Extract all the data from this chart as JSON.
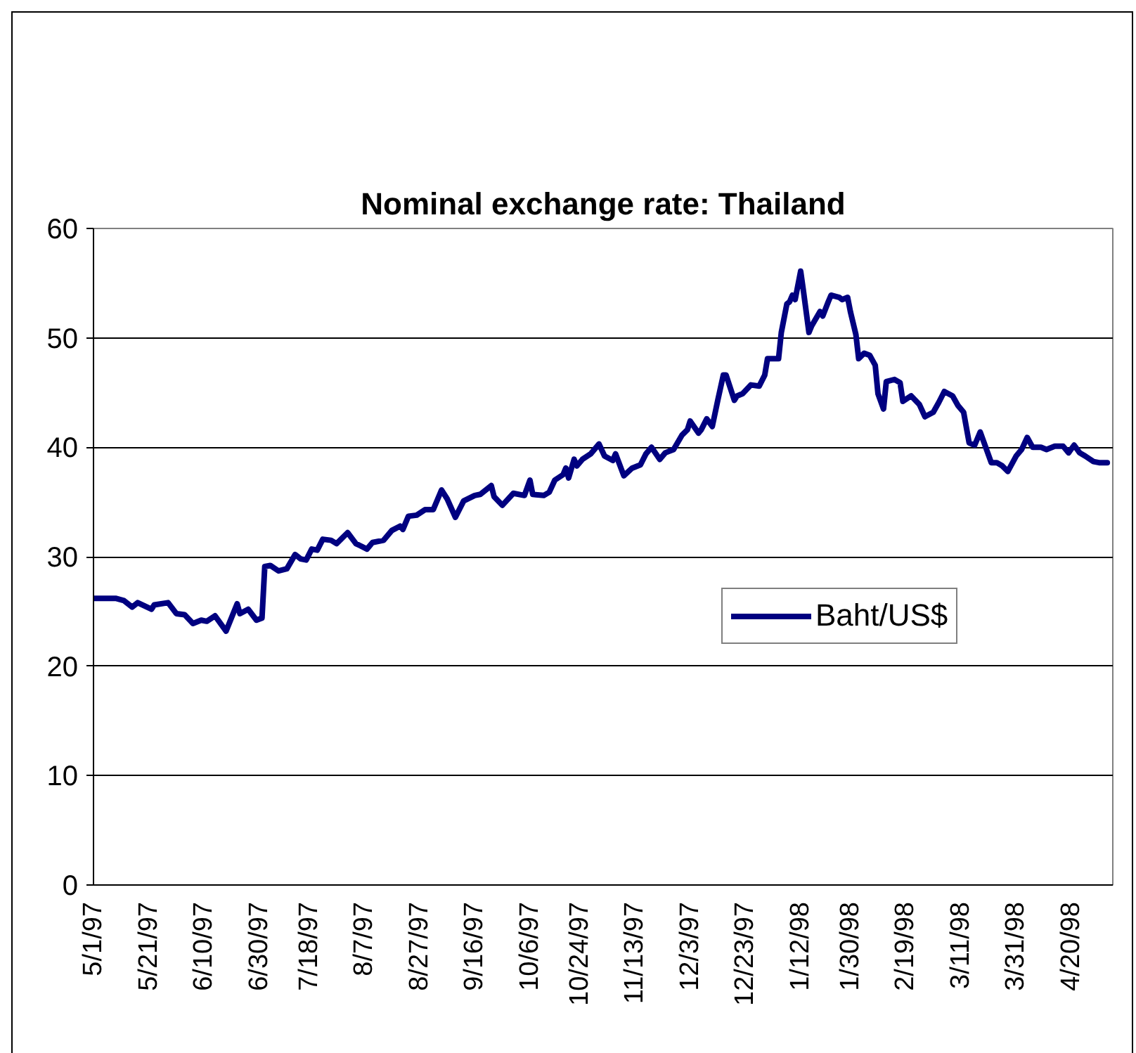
{
  "chart_data": {
    "type": "line",
    "title": "Nominal exchange rate: Thailand",
    "x": [
      "1997-05-01",
      "1997-05-09",
      "1997-05-12",
      "1997-05-15",
      "1997-05-17",
      "1997-05-22",
      "1997-05-23",
      "1997-05-28",
      "1997-05-31",
      "1997-06-03",
      "1997-06-06",
      "1997-06-09",
      "1997-06-11",
      "1997-06-14",
      "1997-06-18",
      "1997-06-22",
      "1997-06-23",
      "1997-06-26",
      "1997-06-29",
      "1997-07-01",
      "1997-07-02",
      "1997-07-04",
      "1997-07-07",
      "1997-07-10",
      "1997-07-13",
      "1997-07-15",
      "1997-07-17",
      "1997-07-19",
      "1997-07-21",
      "1997-07-23",
      "1997-07-26",
      "1997-07-28",
      "1997-08-01",
      "1997-08-04",
      "1997-08-08",
      "1997-08-10",
      "1997-08-14",
      "1997-08-17",
      "1997-08-20",
      "1997-08-21",
      "1997-08-23",
      "1997-08-26",
      "1997-08-29",
      "1997-09-01",
      "1997-09-04",
      "1997-09-06",
      "1997-09-09",
      "1997-09-12",
      "1997-09-16",
      "1997-09-18",
      "1997-09-22",
      "1997-09-23",
      "1997-09-26",
      "1997-09-30",
      "1997-10-04",
      "1997-10-06",
      "1997-10-07",
      "1997-10-11",
      "1997-10-13",
      "1997-10-15",
      "1997-10-18",
      "1997-10-19",
      "1997-10-20",
      "1997-10-22",
      "1997-10-23",
      "1997-10-25",
      "1997-10-28",
      "1997-10-31",
      "1997-11-02",
      "1997-11-05",
      "1997-11-06",
      "1997-11-09",
      "1997-11-12",
      "1997-11-15",
      "1997-11-17",
      "1997-11-19",
      "1997-11-22",
      "1997-11-24",
      "1997-11-27",
      "1997-11-30",
      "1997-12-02",
      "1997-12-03",
      "1997-12-06",
      "1997-12-07",
      "1997-12-09",
      "1997-12-11",
      "1997-12-13",
      "1997-12-15",
      "1997-12-16",
      "1997-12-19",
      "1997-12-20",
      "1997-12-22",
      "1997-12-25",
      "1997-12-28",
      "1997-12-30",
      "1997-12-31",
      "1998-01-04",
      "1998-01-05",
      "1998-01-07",
      "1998-01-08",
      "1998-01-09",
      "1998-01-10",
      "1998-01-12",
      "1998-01-13",
      "1998-01-15",
      "1998-01-16",
      "1998-01-19",
      "1998-01-20",
      "1998-01-22",
      "1998-01-23",
      "1998-01-26",
      "1998-01-27",
      "1998-01-29",
      "1998-01-30",
      "1998-02-01",
      "1998-02-02",
      "1998-02-04",
      "1998-02-06",
      "1998-02-08",
      "1998-02-09",
      "1998-02-11",
      "1998-02-12",
      "1998-02-15",
      "1998-02-17",
      "1998-02-18",
      "1998-02-21",
      "1998-02-24",
      "1998-02-26",
      "1998-03-01",
      "1998-03-03",
      "1998-03-05",
      "1998-03-08",
      "1998-03-10",
      "1998-03-12",
      "1998-03-14",
      "1998-03-16",
      "1998-03-18",
      "1998-03-20",
      "1998-03-22",
      "1998-03-24",
      "1998-03-26",
      "1998-03-28",
      "1998-03-31",
      "1998-04-02",
      "1998-04-04",
      "1998-04-06",
      "1998-04-09",
      "1998-04-11",
      "1998-04-14",
      "1998-04-17",
      "1998-04-19",
      "1998-04-21",
      "1998-04-23",
      "1998-04-25",
      "1998-04-28",
      "1998-04-30",
      "1998-05-03"
    ],
    "series": [
      {
        "name": "Baht/US$",
        "color": "#000080",
        "values": [
          26.2,
          26.2,
          26.0,
          25.4,
          25.8,
          25.2,
          25.6,
          25.8,
          24.8,
          24.7,
          23.9,
          24.2,
          24.1,
          24.6,
          23.2,
          25.7,
          24.8,
          25.2,
          24.2,
          24.4,
          29.1,
          29.2,
          28.7,
          28.9,
          30.2,
          29.8,
          29.7,
          30.7,
          30.6,
          31.6,
          31.5,
          31.2,
          32.2,
          31.2,
          30.7,
          31.3,
          31.5,
          32.4,
          32.8,
          32.5,
          33.7,
          33.8,
          34.3,
          34.3,
          36.1,
          35.3,
          33.6,
          35.1,
          35.6,
          35.7,
          36.5,
          35.5,
          34.7,
          35.8,
          35.6,
          37.0,
          35.7,
          35.6,
          35.9,
          37.0,
          37.5,
          38.1,
          37.2,
          38.9,
          38.3,
          38.9,
          39.4,
          40.3,
          39.2,
          38.8,
          39.4,
          37.4,
          38.1,
          38.4,
          39.4,
          40.0,
          38.9,
          39.5,
          39.8,
          41.1,
          41.6,
          42.4,
          41.3,
          41.6,
          42.6,
          41.9,
          44.3,
          46.6,
          46.6,
          44.3,
          44.7,
          44.9,
          45.7,
          45.6,
          46.6,
          48.1,
          48.1,
          50.5,
          53.1,
          53.3,
          53.9,
          53.5,
          56.1,
          54.3,
          50.5,
          51.1,
          52.4,
          52.0,
          53.3,
          53.9,
          53.7,
          53.5,
          53.7,
          52.4,
          50.3,
          48.1,
          48.6,
          48.4,
          47.5,
          44.9,
          43.5,
          46.0,
          46.2,
          45.9,
          44.2,
          44.7,
          43.9,
          42.8,
          43.2,
          44.1,
          45.1,
          44.7,
          43.8,
          43.2,
          40.4,
          40.2,
          41.4,
          40.0,
          38.6,
          38.6,
          38.3,
          37.8,
          39.2,
          39.8,
          40.9,
          40.0,
          40.0,
          39.8,
          40.1,
          40.1,
          39.5,
          40.2,
          39.5,
          39.2,
          38.7,
          38.6,
          38.6
        ]
      }
    ],
    "xlim": [
      "1997-05-01",
      "1998-05-05"
    ],
    "xticks": [
      {
        "value": "1997-05-01",
        "label": "5/1/97"
      },
      {
        "value": "1997-05-21",
        "label": "5/21/97"
      },
      {
        "value": "1997-06-10",
        "label": "6/10/97"
      },
      {
        "value": "1997-06-30",
        "label": "6/30/97"
      },
      {
        "value": "1997-07-18",
        "label": "7/18/97"
      },
      {
        "value": "1997-08-07",
        "label": "8/7/97"
      },
      {
        "value": "1997-08-27",
        "label": "8/27/97"
      },
      {
        "value": "1997-09-16",
        "label": "9/16/97"
      },
      {
        "value": "1997-10-06",
        "label": "10/6/97"
      },
      {
        "value": "1997-10-24",
        "label": "10/24/97"
      },
      {
        "value": "1997-11-13",
        "label": "11/13/97"
      },
      {
        "value": "1997-12-03",
        "label": "12/3/97"
      },
      {
        "value": "1997-12-23",
        "label": "12/23/97"
      },
      {
        "value": "1998-01-12",
        "label": "1/12/98"
      },
      {
        "value": "1998-01-30",
        "label": "1/30/98"
      },
      {
        "value": "1998-02-19",
        "label": "2/19/98"
      },
      {
        "value": "1998-03-11",
        "label": "3/11/98"
      },
      {
        "value": "1998-03-31",
        "label": "3/31/98"
      },
      {
        "value": "1998-04-20",
        "label": "4/20/98"
      }
    ],
    "ylim": [
      0,
      60
    ],
    "yticks": [
      0,
      10,
      20,
      30,
      40,
      50,
      60
    ],
    "grid": "y",
    "legend": "right",
    "line_style": "solid"
  }
}
